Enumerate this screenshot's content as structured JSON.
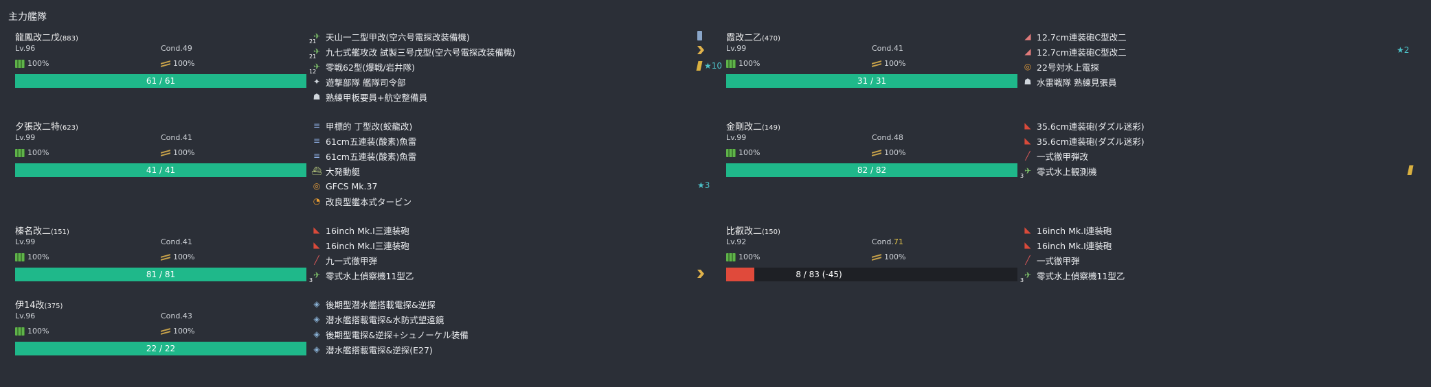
{
  "fleet_title": "主力艦隊",
  "ships": [
    {
      "name": "龍鳳改二戊",
      "id": "(883)",
      "lv": "Lv.96",
      "cond_label": "Cond.",
      "cond": "49",
      "cond_warn": false,
      "fuel": "100%",
      "ammo": "100%",
      "hp": "61 / 61",
      "hp_ratio": 1.0,
      "hp_red": false,
      "slots": [
        {
          "icon": "plane-icon",
          "glyph": "✈",
          "cls": "i-plane-g",
          "count": "21",
          "name": "天山一二型甲改(空六号電探改装備機)",
          "prof": "bar",
          "star": ""
        },
        {
          "icon": "plane-icon",
          "glyph": "✈",
          "cls": "i-plane-g",
          "count": "21",
          "name": "九七式艦攻改 試製三号戊型(空六号電探改装備機)",
          "prof": "chev",
          "star": ""
        },
        {
          "icon": "fighter-icon",
          "glyph": "✈",
          "cls": "i-plane-g",
          "count": "12",
          "name": "零戦62型(爆戦/岩井隊)",
          "prof": "slash",
          "star": "★10"
        },
        {
          "icon": "person-icon",
          "glyph": "✦",
          "cls": "i-person",
          "count": "",
          "name": "遊撃部隊 艦隊司令部",
          "prof": "",
          "star": ""
        },
        {
          "icon": "crew-icon",
          "glyph": "☗",
          "cls": "i-person",
          "count": "",
          "name": "熟練甲板要員+航空整備員",
          "prof": "",
          "star": ""
        }
      ],
      "ex_star": ""
    },
    {
      "name": "霞改二乙",
      "id": "(470)",
      "lv": "Lv.99",
      "cond_label": "Cond.",
      "cond": "41",
      "cond_warn": false,
      "fuel": "100%",
      "ammo": "100%",
      "hp": "31 / 31",
      "hp_ratio": 1.0,
      "hp_red": false,
      "slots": [
        {
          "icon": "gun-icon",
          "glyph": "◢",
          "cls": "i-gun-p",
          "count": "",
          "name": "12.7cm連装砲C型改二",
          "prof": "",
          "star": ""
        },
        {
          "icon": "gun-icon",
          "glyph": "◢",
          "cls": "i-gun-p",
          "count": "",
          "name": "12.7cm連装砲C型改二",
          "prof": "",
          "star": ""
        },
        {
          "icon": "radar-icon",
          "glyph": "◎",
          "cls": "i-radar",
          "count": "",
          "name": "22号対水上電探",
          "prof": "",
          "star": ""
        },
        {
          "icon": "lookout-icon",
          "glyph": "☗",
          "cls": "i-person",
          "count": "",
          "name": "水雷戦隊 熟練見張員",
          "prof": "",
          "star": ""
        }
      ],
      "ex_star": "★2"
    },
    {
      "name": "夕張改二特",
      "id": "(623)",
      "lv": "Lv.99",
      "cond_label": "Cond.",
      "cond": "41",
      "cond_warn": false,
      "fuel": "100%",
      "ammo": "100%",
      "hp": "41 / 41",
      "hp_ratio": 1.0,
      "hp_red": false,
      "slots": [
        {
          "icon": "torpedo-icon",
          "glyph": "≡",
          "cls": "i-torp",
          "count": "",
          "name": "甲標的 丁型改(蛟龍改)",
          "prof": "",
          "star": ""
        },
        {
          "icon": "torpedo-icon",
          "glyph": "≡",
          "cls": "i-torp",
          "count": "",
          "name": "61cm五連装(酸素)魚雷",
          "prof": "",
          "star": ""
        },
        {
          "icon": "torpedo-icon",
          "glyph": "≡",
          "cls": "i-torp",
          "count": "",
          "name": "61cm五連装(酸素)魚雷",
          "prof": "",
          "star": ""
        },
        {
          "icon": "landing-craft-icon",
          "glyph": "⛴",
          "cls": "i-boat",
          "count": "",
          "name": "大発動艇",
          "prof": "",
          "star": ""
        },
        {
          "icon": "radar-icon",
          "glyph": "◎",
          "cls": "i-radar",
          "count": "",
          "name": "GFCS Mk.37",
          "prof": "",
          "star": "★3"
        },
        {
          "icon": "turbine-icon",
          "glyph": "◔",
          "cls": "i-turbine",
          "count": "",
          "name": "改良型艦本式タービン",
          "prof": "",
          "star": ""
        }
      ],
      "ex_star": ""
    },
    {
      "name": "金剛改二",
      "id": "(149)",
      "lv": "Lv.99",
      "cond_label": "Cond.",
      "cond": "48",
      "cond_warn": false,
      "fuel": "100%",
      "ammo": "100%",
      "hp": "82 / 82",
      "hp_ratio": 1.0,
      "hp_red": false,
      "slots": [
        {
          "icon": "big-gun-icon",
          "glyph": "◣",
          "cls": "i-gun-r",
          "count": "",
          "name": "35.6cm連装砲(ダズル迷彩)",
          "prof": "",
          "star": ""
        },
        {
          "icon": "big-gun-icon",
          "glyph": "◣",
          "cls": "i-gun-r",
          "count": "",
          "name": "35.6cm連装砲(ダズル迷彩)",
          "prof": "",
          "star": ""
        },
        {
          "icon": "shell-icon",
          "glyph": "╱",
          "cls": "i-shell",
          "count": "",
          "name": "一式徹甲弾改",
          "prof": "",
          "star": ""
        },
        {
          "icon": "seaplane-icon",
          "glyph": "✈",
          "cls": "i-plane-g",
          "count": "3",
          "name": "零式水上観測機",
          "prof": "slash",
          "star": ""
        }
      ],
      "ex_star": ""
    },
    {
      "name": "榛名改二",
      "id": "(151)",
      "lv": "Lv.99",
      "cond_label": "Cond.",
      "cond": "41",
      "cond_warn": false,
      "fuel": "100%",
      "ammo": "100%",
      "hp": "81 / 81",
      "hp_ratio": 1.0,
      "hp_red": false,
      "slots": [
        {
          "icon": "big-gun-icon",
          "glyph": "◣",
          "cls": "i-gun-r",
          "count": "",
          "name": "16inch Mk.I三連装砲",
          "prof": "",
          "star": ""
        },
        {
          "icon": "big-gun-icon",
          "glyph": "◣",
          "cls": "i-gun-r",
          "count": "",
          "name": "16inch Mk.I三連装砲",
          "prof": "",
          "star": ""
        },
        {
          "icon": "shell-icon",
          "glyph": "╱",
          "cls": "i-shell",
          "count": "",
          "name": "九一式徹甲弾",
          "prof": "",
          "star": ""
        },
        {
          "icon": "seaplane-icon",
          "glyph": "✈",
          "cls": "i-plane-g",
          "count": "3",
          "name": "零式水上偵察機11型乙",
          "prof": "chev",
          "star": ""
        }
      ],
      "ex_star": ""
    },
    {
      "name": "比叡改二",
      "id": "(150)",
      "lv": "Lv.92",
      "cond_label": "Cond.",
      "cond": "71",
      "cond_warn": true,
      "fuel": "100%",
      "ammo": "100%",
      "hp": "8 / 83 (-45)",
      "hp_ratio": 0.096,
      "hp_red": true,
      "slots": [
        {
          "icon": "big-gun-icon",
          "glyph": "◣",
          "cls": "i-gun-r",
          "count": "",
          "name": "16inch Mk.I連装砲",
          "prof": "",
          "star": ""
        },
        {
          "icon": "big-gun-icon",
          "glyph": "◣",
          "cls": "i-gun-r",
          "count": "",
          "name": "16inch Mk.I連装砲",
          "prof": "",
          "star": ""
        },
        {
          "icon": "shell-icon",
          "glyph": "╱",
          "cls": "i-shell",
          "count": "",
          "name": "一式徹甲弾",
          "prof": "",
          "star": ""
        },
        {
          "icon": "seaplane-icon",
          "glyph": "✈",
          "cls": "i-plane-g",
          "count": "3",
          "name": "零式水上偵察機11型乙",
          "prof": "",
          "star": ""
        }
      ],
      "ex_star": ""
    },
    {
      "name": "伊14改",
      "id": "(375)",
      "lv": "Lv.96",
      "cond_label": "Cond.",
      "cond": "43",
      "cond_warn": false,
      "fuel": "100%",
      "ammo": "100%",
      "hp": "22 / 22",
      "hp_ratio": 1.0,
      "hp_red": false,
      "slots": [
        {
          "icon": "sonar-icon",
          "glyph": "◈",
          "cls": "i-sub",
          "count": "",
          "name": "後期型潜水艦搭載電探&逆探",
          "prof": "",
          "star": ""
        },
        {
          "icon": "sonar-icon",
          "glyph": "◈",
          "cls": "i-sub",
          "count": "",
          "name": "潜水艦搭載電探&水防式望遠鏡",
          "prof": "",
          "star": ""
        },
        {
          "icon": "sonar-icon",
          "glyph": "◈",
          "cls": "i-sub",
          "count": "",
          "name": "後期型電探&逆探+シュノーケル装備",
          "prof": "",
          "star": ""
        },
        {
          "icon": "sonar-icon",
          "glyph": "◈",
          "cls": "i-sub",
          "count": "",
          "name": "潜水艦搭載電探&逆探(E27)",
          "prof": "",
          "star": ""
        }
      ],
      "ex_star": ""
    }
  ]
}
